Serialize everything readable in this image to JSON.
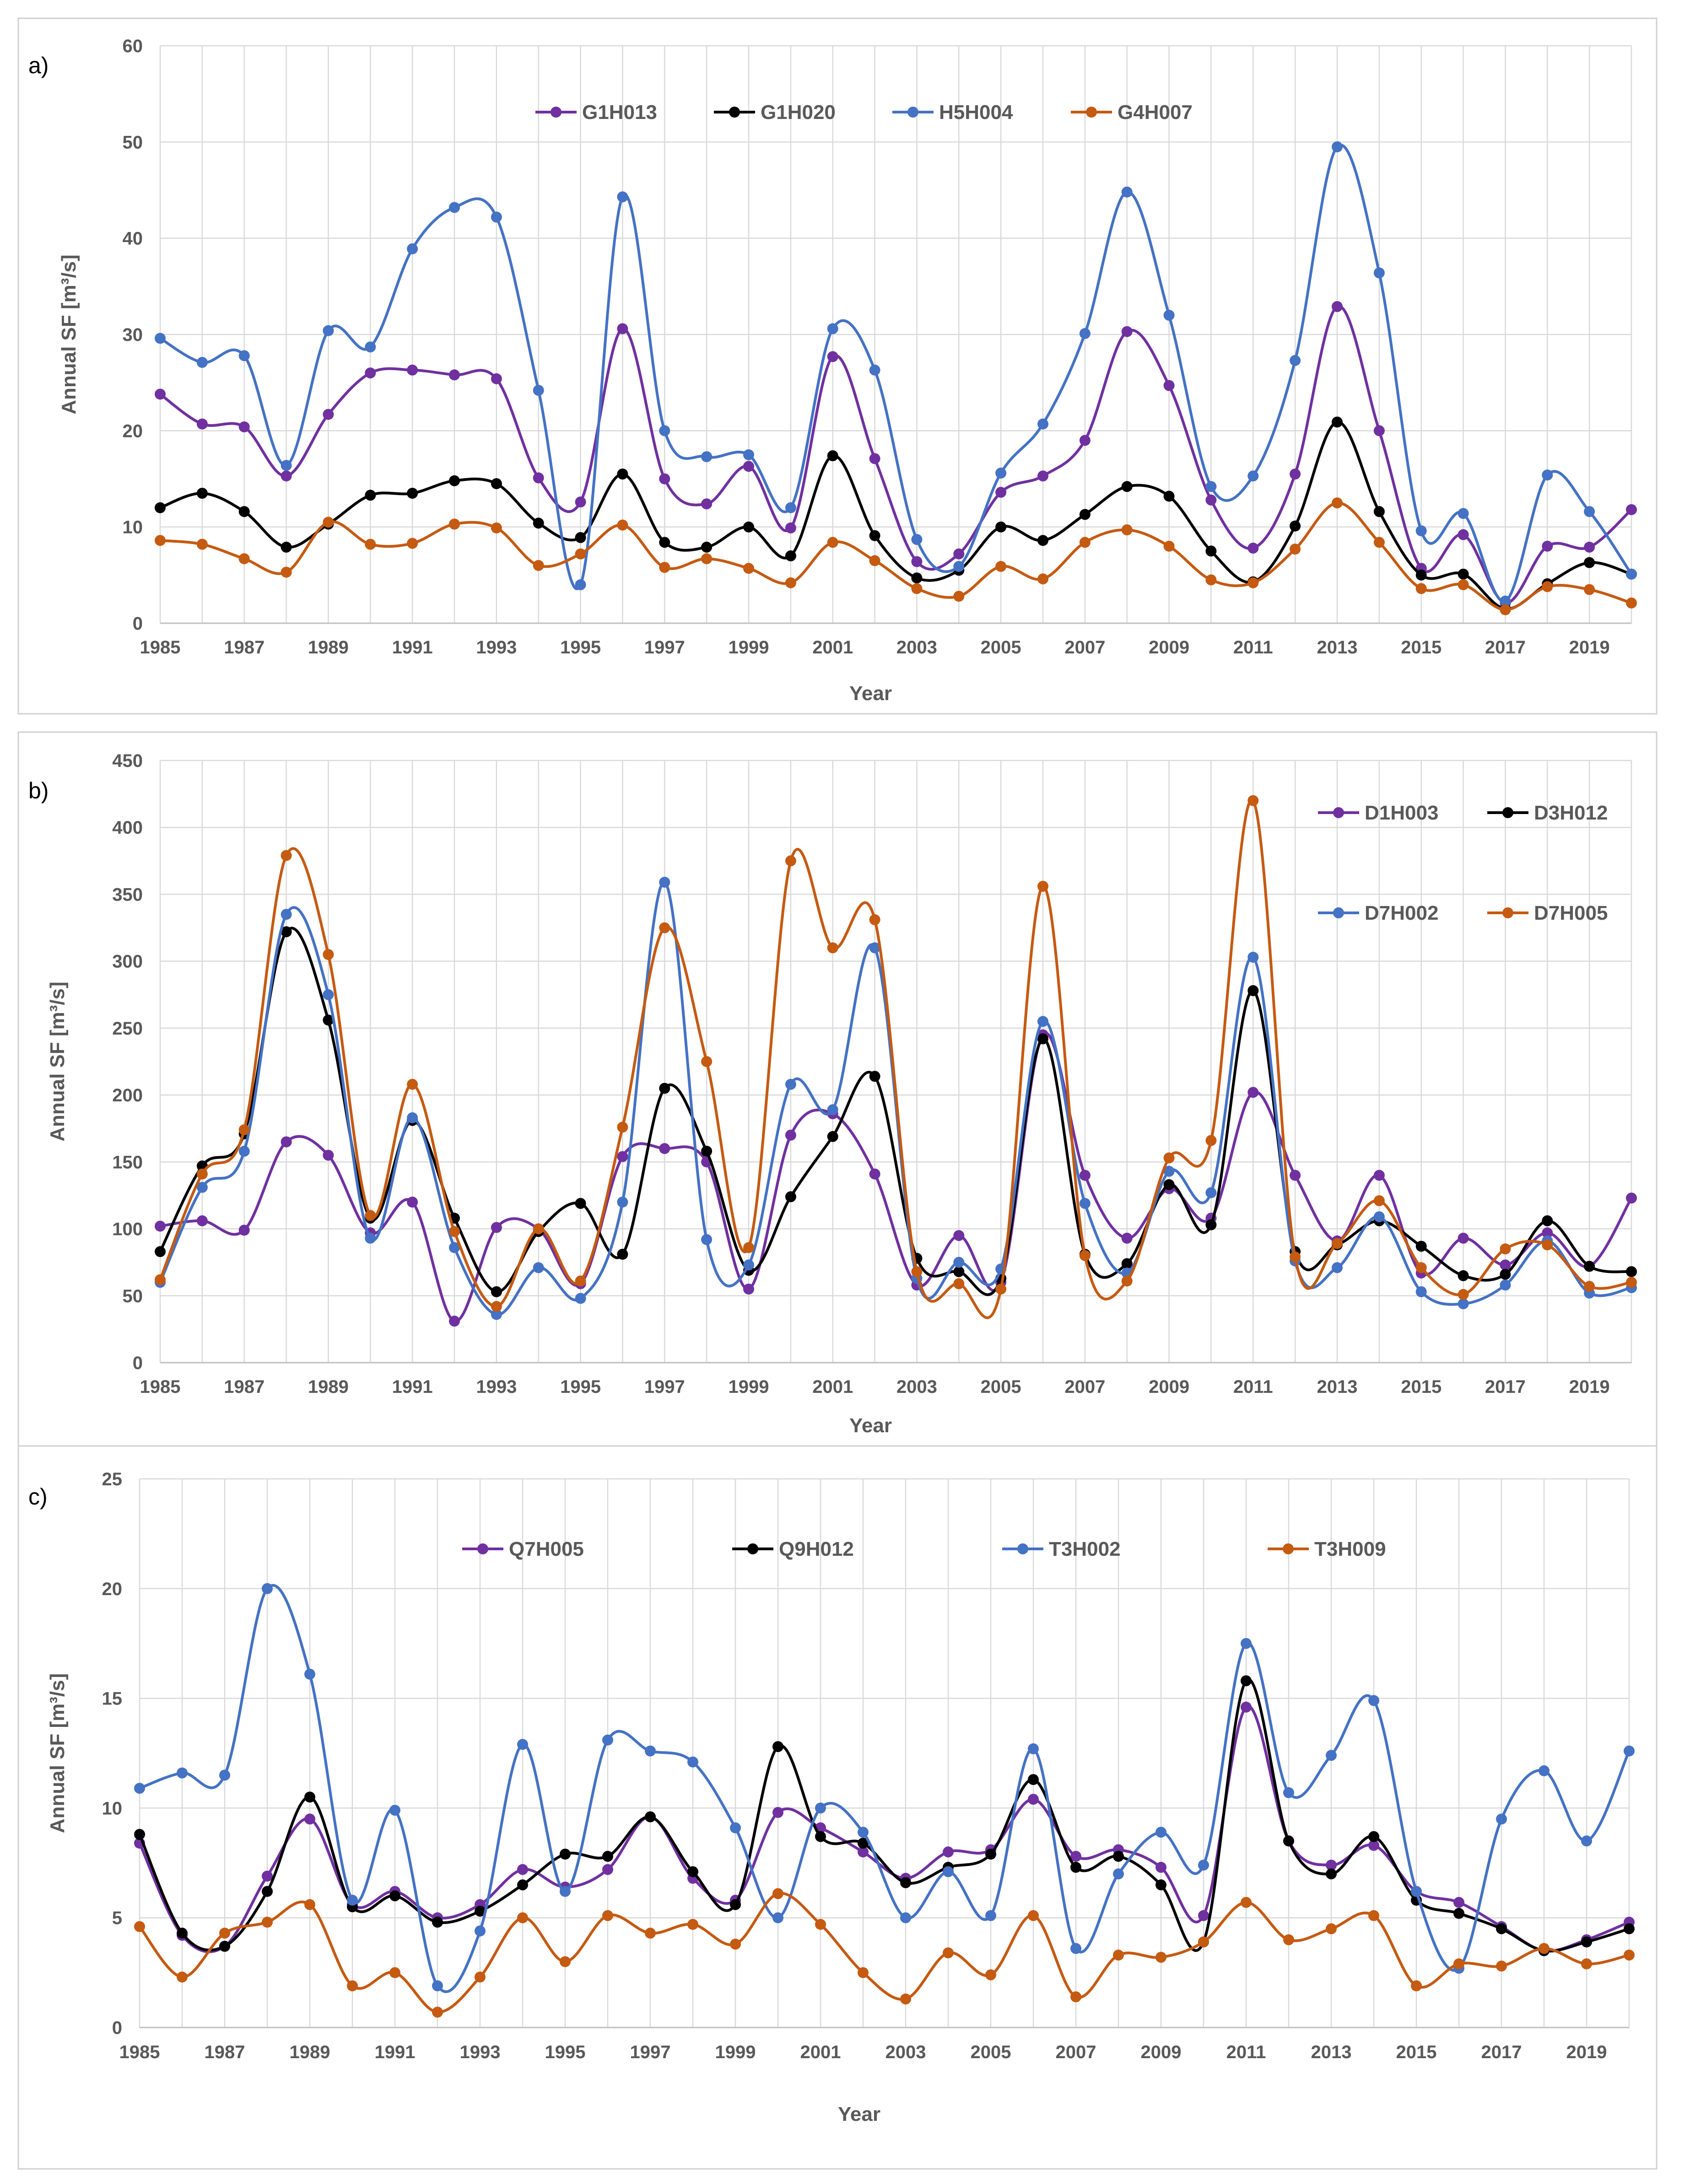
{
  "chart_data": [
    {
      "type": "line",
      "panel_label": "a)",
      "xlabel": "Year",
      "ylabel": "Annual SF [m³/s]",
      "ylim": [
        0,
        60
      ],
      "yticks": [
        0,
        10,
        20,
        30,
        40,
        50,
        60
      ],
      "x": [
        1985,
        1986,
        1987,
        1988,
        1989,
        1990,
        1991,
        1992,
        1993,
        1994,
        1995,
        1996,
        1997,
        1998,
        1999,
        2000,
        2001,
        2002,
        2003,
        2004,
        2005,
        2006,
        2007,
        2008,
        2009,
        2010,
        2011,
        2012,
        2013,
        2014,
        2015,
        2016,
        2017,
        2018,
        2019,
        2020
      ],
      "xticks": [
        "1985",
        "1987",
        "1989",
        "1991",
        "1993",
        "1995",
        "1997",
        "1999",
        "2001",
        "2003",
        "2005",
        "2007",
        "2009",
        "2011",
        "2013",
        "2015",
        "2017",
        "2019"
      ],
      "grid": true,
      "series": [
        {
          "name": "G1H013",
          "color": "#7030A0",
          "values": [
            23.8,
            20.7,
            20.4,
            15.3,
            21.7,
            26.0,
            26.3,
            25.8,
            25.4,
            15.1,
            12.6,
            30.6,
            15.0,
            12.4,
            16.3,
            9.9,
            27.7,
            17.1,
            6.4,
            7.2,
            13.6,
            15.3,
            19.0,
            30.3,
            24.7,
            12.8,
            7.8,
            15.5,
            32.9,
            20.0,
            5.7,
            9.2,
            2.1,
            8.0,
            7.9,
            11.8
          ]
        },
        {
          "name": "G1H020",
          "color": "#000000",
          "values": [
            12.0,
            13.5,
            11.6,
            7.9,
            10.3,
            13.3,
            13.5,
            14.8,
            14.5,
            10.4,
            8.9,
            15.5,
            8.4,
            7.9,
            10.0,
            7.0,
            17.4,
            9.1,
            4.7,
            5.5,
            10.0,
            8.6,
            11.3,
            14.2,
            13.2,
            7.5,
            4.3,
            10.1,
            20.9,
            11.6,
            5.0,
            5.1,
            1.5,
            4.1,
            6.3,
            5.1
          ]
        },
        {
          "name": "H5H004",
          "color": "#4472C4",
          "values": [
            29.6,
            27.1,
            27.8,
            16.4,
            30.4,
            28.7,
            38.9,
            43.2,
            42.2,
            24.2,
            4.0,
            44.3,
            20.0,
            17.3,
            17.5,
            12.0,
            30.6,
            26.3,
            8.7,
            5.9,
            15.6,
            20.7,
            30.1,
            44.8,
            32.0,
            14.2,
            15.3,
            27.3,
            49.5,
            36.4,
            9.6,
            11.4,
            2.3,
            15.4,
            11.6,
            5.1
          ]
        },
        {
          "name": "G4H007",
          "color": "#C55A11",
          "values": [
            8.6,
            8.2,
            6.7,
            5.3,
            10.5,
            8.2,
            8.3,
            10.3,
            9.9,
            6.0,
            7.2,
            10.2,
            5.8,
            6.7,
            5.7,
            4.2,
            8.4,
            6.5,
            3.6,
            2.8,
            5.9,
            4.6,
            8.4,
            9.7,
            8.0,
            4.5,
            4.2,
            7.7,
            12.5,
            8.4,
            3.6,
            4.0,
            1.4,
            3.8,
            3.5,
            2.1
          ]
        }
      ]
    },
    {
      "type": "line",
      "panel_label": "b)",
      "xlabel": "Year",
      "ylabel": "Annual SF [m³/s]",
      "ylim": [
        0,
        450
      ],
      "yticks": [
        0,
        50,
        100,
        150,
        200,
        250,
        300,
        350,
        400,
        450
      ],
      "x": [
        1985,
        1986,
        1987,
        1988,
        1989,
        1990,
        1991,
        1992,
        1993,
        1994,
        1995,
        1996,
        1997,
        1998,
        1999,
        2000,
        2001,
        2002,
        2003,
        2004,
        2005,
        2006,
        2007,
        2008,
        2009,
        2010,
        2011,
        2012,
        2013,
        2014,
        2015,
        2016,
        2017,
        2018,
        2019,
        2020
      ],
      "xticks": [
        "1985",
        "1987",
        "1989",
        "1991",
        "1993",
        "1995",
        "1997",
        "1999",
        "2001",
        "2003",
        "2005",
        "2007",
        "2009",
        "2011",
        "2013",
        "2015",
        "2017",
        "2019"
      ],
      "grid": true,
      "series": [
        {
          "name": "D1H003",
          "color": "#7030A0",
          "values": [
            102,
            106,
            99,
            165,
            155,
            97,
            120,
            31,
            101,
            100,
            59,
            154,
            160,
            150,
            55,
            170,
            186,
            141,
            58,
            95,
            60,
            245,
            140,
            93,
            130,
            108,
            202,
            140,
            91,
            140,
            67,
            93,
            73,
            97,
            72,
            123
          ]
        },
        {
          "name": "D3H012",
          "color": "#000000",
          "values": [
            83,
            147,
            171,
            322,
            256,
            108,
            181,
            108,
            53,
            98,
            119,
            81,
            205,
            158,
            69,
            124,
            169,
            214,
            78,
            68,
            63,
            242,
            81,
            74,
            133,
            103,
            278,
            83,
            88,
            106,
            87,
            65,
            66,
            106,
            72,
            68
          ]
        },
        {
          "name": "D7H002",
          "color": "#4472C4",
          "values": [
            60,
            131,
            158,
            335,
            275,
            93,
            183,
            86,
            36,
            71,
            48,
            120,
            359,
            92,
            73,
            208,
            189,
            310,
            63,
            75,
            70,
            255,
            119,
            67,
            143,
            127,
            303,
            76,
            71,
            109,
            53,
            44,
            58,
            91,
            52,
            56
          ]
        },
        {
          "name": "D7H005",
          "color": "#C55A11",
          "values": [
            62,
            141,
            174,
            379,
            305,
            110,
            208,
            98,
            42,
            100,
            61,
            176,
            325,
            225,
            86,
            375,
            310,
            331,
            68,
            59,
            55,
            356,
            80,
            61,
            153,
            166,
            420,
            79,
            89,
            121,
            71,
            51,
            85,
            88,
            57,
            60
          ]
        }
      ]
    },
    {
      "type": "line",
      "panel_label": "c)",
      "xlabel": "Year",
      "ylabel": "Annual SF [m³/s]",
      "ylim": [
        0,
        25
      ],
      "yticks": [
        0,
        5,
        10,
        15,
        20,
        25
      ],
      "x": [
        1985,
        1986,
        1987,
        1988,
        1989,
        1990,
        1991,
        1992,
        1993,
        1994,
        1995,
        1996,
        1997,
        1998,
        1999,
        2000,
        2001,
        2002,
        2003,
        2004,
        2005,
        2006,
        2007,
        2008,
        2009,
        2010,
        2011,
        2012,
        2013,
        2014,
        2015,
        2016,
        2017,
        2018,
        2019,
        2020
      ],
      "xticks": [
        "1985",
        "1987",
        "1989",
        "1991",
        "1993",
        "1995",
        "1997",
        "1999",
        "2001",
        "2003",
        "2005",
        "2007",
        "2009",
        "2011",
        "2013",
        "2015",
        "2017",
        "2019"
      ],
      "grid": true,
      "series": [
        {
          "name": "Q7H005",
          "color": "#7030A0",
          "values": [
            8.4,
            4.2,
            3.7,
            6.9,
            9.5,
            5.6,
            6.2,
            5.0,
            5.6,
            7.2,
            6.4,
            7.2,
            9.6,
            6.8,
            5.8,
            9.8,
            9.1,
            8.0,
            6.8,
            8.0,
            8.1,
            10.4,
            7.8,
            8.1,
            7.3,
            5.1,
            14.6,
            8.5,
            7.4,
            8.3,
            6.2,
            5.7,
            4.6,
            3.5,
            4.0,
            4.8
          ]
        },
        {
          "name": "Q9H012",
          "color": "#000000",
          "values": [
            8.8,
            4.3,
            3.7,
            6.2,
            10.5,
            5.5,
            6.0,
            4.8,
            5.3,
            6.5,
            7.9,
            7.8,
            9.6,
            7.1,
            5.6,
            12.8,
            8.7,
            8.4,
            6.6,
            7.3,
            7.9,
            11.3,
            7.3,
            7.8,
            6.5,
            3.9,
            15.8,
            8.5,
            7.0,
            8.7,
            5.8,
            5.2,
            4.5,
            3.5,
            3.9,
            4.5
          ]
        },
        {
          "name": "T3H002",
          "color": "#4472C4",
          "values": [
            10.9,
            11.6,
            11.5,
            20.0,
            16.1,
            5.8,
            9.9,
            1.9,
            4.4,
            12.9,
            6.2,
            13.1,
            12.6,
            12.1,
            9.1,
            5.0,
            10.0,
            8.9,
            5.0,
            7.1,
            5.1,
            12.7,
            3.6,
            7.0,
            8.9,
            7.4,
            17.5,
            10.7,
            12.4,
            14.9,
            6.2,
            2.7,
            9.5,
            11.7,
            8.5,
            12.6
          ]
        },
        {
          "name": "T3H009",
          "color": "#C55A11",
          "values": [
            4.6,
            2.3,
            4.3,
            4.8,
            5.6,
            1.9,
            2.5,
            0.7,
            2.3,
            5.0,
            3.0,
            5.1,
            4.3,
            4.7,
            3.8,
            6.1,
            4.7,
            2.5,
            1.3,
            3.4,
            2.4,
            5.1,
            1.4,
            3.3,
            3.2,
            3.9,
            5.7,
            4.0,
            4.5,
            5.1,
            1.9,
            2.9,
            2.8,
            3.6,
            2.9,
            3.3
          ]
        }
      ]
    }
  ]
}
